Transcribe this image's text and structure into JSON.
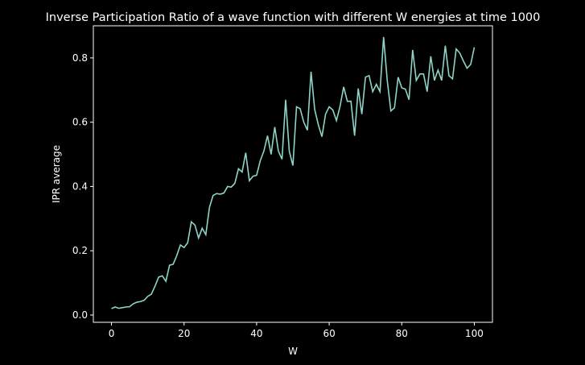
{
  "chart_data": {
    "type": "line",
    "title": "Inverse Participation Ratio of a wave function with different W energies at time 1000",
    "x_label": "W",
    "y_label": "IPR average",
    "x": [
      0,
      1,
      2,
      3,
      4,
      5,
      6,
      7,
      8,
      9,
      10,
      11,
      12,
      13,
      14,
      15,
      16,
      17,
      18,
      19,
      20,
      21,
      22,
      23,
      24,
      25,
      26,
      27,
      28,
      29,
      30,
      31,
      32,
      33,
      34,
      35,
      36,
      37,
      38,
      39,
      40,
      41,
      42,
      43,
      44,
      45,
      46,
      47,
      48,
      49,
      50,
      51,
      52,
      53,
      54,
      55,
      56,
      57,
      58,
      59,
      60,
      61,
      62,
      63,
      64,
      65,
      66,
      67,
      68,
      69,
      70,
      71,
      72,
      73,
      74,
      75,
      76,
      77,
      78,
      79,
      80,
      81,
      82,
      83,
      84,
      85,
      86,
      87,
      88,
      89,
      90,
      91,
      92,
      93,
      94,
      95,
      96,
      97,
      98,
      99,
      100
    ],
    "series": [
      {
        "color": "#8dd3c7",
        "values": [
          0.02,
          0.025,
          0.021,
          0.023,
          0.025,
          0.026,
          0.035,
          0.04,
          0.042,
          0.046,
          0.058,
          0.065,
          0.09,
          0.118,
          0.122,
          0.105,
          0.155,
          0.158,
          0.185,
          0.218,
          0.21,
          0.225,
          0.29,
          0.28,
          0.24,
          0.27,
          0.25,
          0.335,
          0.372,
          0.378,
          0.376,
          0.38,
          0.4,
          0.398,
          0.41,
          0.455,
          0.445,
          0.505,
          0.418,
          0.432,
          0.435,
          0.48,
          0.51,
          0.558,
          0.5,
          0.585,
          0.51,
          0.485,
          0.67,
          0.51,
          0.465,
          0.648,
          0.642,
          0.6,
          0.575,
          0.757,
          0.64,
          0.592,
          0.555,
          0.625,
          0.648,
          0.638,
          0.605,
          0.65,
          0.71,
          0.665,
          0.665,
          0.558,
          0.705,
          0.625,
          0.74,
          0.745,
          0.695,
          0.718,
          0.695,
          0.865,
          0.73,
          0.635,
          0.645,
          0.74,
          0.707,
          0.703,
          0.67,
          0.825,
          0.73,
          0.75,
          0.75,
          0.695,
          0.805,
          0.73,
          0.762,
          0.73,
          0.838,
          0.745,
          0.735,
          0.828,
          0.815,
          0.79,
          0.768,
          0.78,
          0.833
        ]
      }
    ],
    "xlim": [
      -5,
      105
    ],
    "xticks": [
      0,
      20,
      40,
      60,
      80,
      100
    ],
    "ylim": [
      -0.0226,
      0.9
    ],
    "yticks": [
      {
        "value": 0,
        "label": "0.0"
      },
      0.2,
      0.4,
      0.6,
      0.8
    ]
  }
}
